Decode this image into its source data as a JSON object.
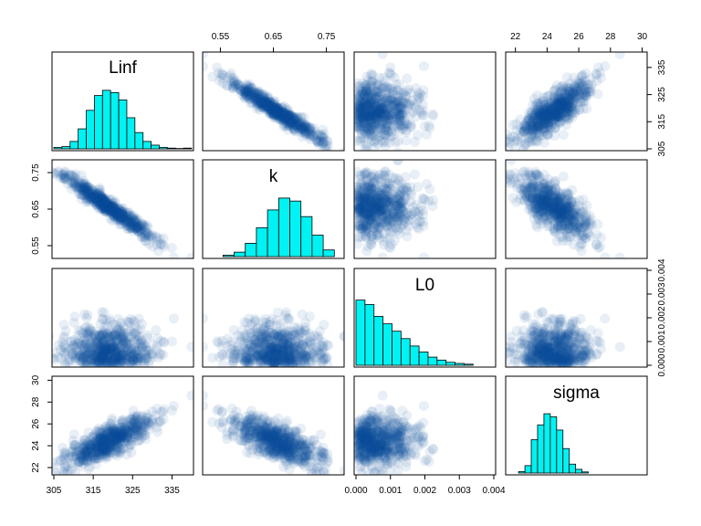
{
  "chart_data": {
    "type": "scatter-matrix",
    "variables": [
      {
        "name": "Linf",
        "range": [
          305,
          340
        ],
        "ticks": [
          "305",
          "315",
          "325",
          "335"
        ],
        "tick_values": [
          305,
          315,
          325,
          335
        ],
        "hist": [
          0.02,
          0.03,
          0.1,
          0.27,
          0.52,
          0.72,
          0.79,
          0.76,
          0.66,
          0.42,
          0.22,
          0.1,
          0.05,
          0.02,
          0.01,
          0.005,
          0.01
        ],
        "hist_edges": [
          305,
          340
        ]
      },
      {
        "name": "k",
        "range": [
          0.52,
          0.78
        ],
        "ticks": [
          "0.55",
          "0.65",
          "0.75"
        ],
        "tick_values": [
          0.55,
          0.65,
          0.75
        ],
        "hist": [
          0.02,
          0.06,
          0.18,
          0.39,
          0.63,
          0.79,
          0.75,
          0.54,
          0.29,
          0.09
        ],
        "hist_edges": [
          0.555,
          0.765
        ]
      },
      {
        "name": "L0",
        "range": [
          0,
          0.004
        ],
        "ticks": [
          "0.000",
          "0.001",
          "0.002",
          "0.003",
          "0.004"
        ],
        "tick_values": [
          0,
          0.001,
          0.002,
          0.003,
          0.004
        ],
        "hist": [
          0.88,
          0.82,
          0.66,
          0.56,
          0.46,
          0.36,
          0.26,
          0.18,
          0.11,
          0.07,
          0.04,
          0.025,
          0.015
        ],
        "hist_edges": [
          0,
          0.0034
        ]
      },
      {
        "name": "sigma",
        "range": [
          21.5,
          30.2
        ],
        "ticks": [
          "22",
          "24",
          "26",
          "28",
          "30"
        ],
        "tick_values": [
          22,
          24,
          26,
          28,
          30
        ],
        "hist": [
          0.02,
          0.1,
          0.45,
          0.65,
          0.8,
          0.76,
          0.58,
          0.33,
          0.12,
          0.05,
          0.015
        ],
        "hist_edges": [
          22.2,
          26.6
        ]
      }
    ],
    "correlations": [
      [
        1,
        -0.97,
        0.0,
        0.8
      ],
      [
        -0.97,
        1,
        0.0,
        -0.72
      ],
      [
        0.0,
        0.0,
        1,
        -0.05
      ],
      [
        0.8,
        -0.72,
        -0.05,
        1
      ]
    ],
    "centers": [
      319,
      0.655,
      0.00045,
      24.4
    ],
    "spreads": [
      5.5,
      0.043,
      0.0009,
      1.1
    ],
    "colors": {
      "histogram_fill": "#00f2f2",
      "histogram_stroke": "#000000",
      "point": "#08519c",
      "panel_border": "#000000"
    },
    "grid": false,
    "legend": "none"
  }
}
